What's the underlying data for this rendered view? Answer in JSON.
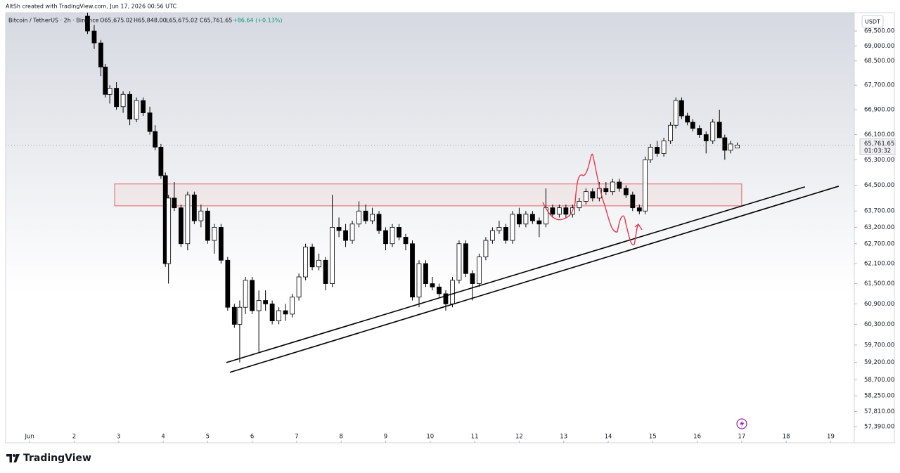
{
  "chart_data": {
    "type": "candlestick",
    "header": "AltSh created with TradingView.com, Jun 17, 2026 00:56 UTC",
    "symbol": "Bitcoin / TetherUS · 2h · Binance",
    "ohlc": [
      {
        "value": 65675.02,
        "label": "O65,675.02"
      },
      {
        "value": 65848.0,
        "label": "H65,848.00"
      },
      {
        "value": 65675.02,
        "label": "L65,675.02"
      },
      {
        "value": 65761.65,
        "label": "C65,761.65"
      }
    ],
    "change": "+86.64 (+0.13%)",
    "currency": "USDT",
    "last_price": {
      "value": 65761.65,
      "label": "65,761.65"
    },
    "countdown": "01:03:32",
    "footer_brand": "TradingView",
    "log_scale": true,
    "grid": false,
    "up_color": "#ffffff",
    "down_color": "#000000",
    "wick_color": "#000000",
    "xlim": [
      0.46,
      19.53
    ],
    "ylim": [
      56940,
      70120
    ],
    "xticks": [
      {
        "value": 1,
        "label": "Jun"
      },
      2,
      3,
      4,
      5,
      6,
      7,
      8,
      9,
      10,
      11,
      12,
      13,
      14,
      15,
      16,
      17,
      18,
      19
    ],
    "yticks": [
      {
        "value": 69500,
        "label": "69,500.00"
      },
      {
        "value": 69000,
        "label": "69,000.00"
      },
      {
        "value": 68500,
        "label": "68,500.00"
      },
      {
        "value": 67700,
        "label": "67,700.00"
      },
      {
        "value": 66900,
        "label": "66,900.00"
      },
      {
        "value": 66100,
        "label": "66,100.00"
      },
      {
        "value": 65300,
        "label": "65,300.00"
      },
      {
        "value": 64500,
        "label": "64,500.00"
      },
      {
        "value": 63700,
        "label": "63,700.00"
      },
      {
        "value": 63200,
        "label": "63,200.00"
      },
      {
        "value": 62700,
        "label": "62,700.00"
      },
      {
        "value": 62100,
        "label": "62,100.00"
      },
      {
        "value": 61500,
        "label": "61,500.00"
      },
      {
        "value": 60900,
        "label": "60,900.00"
      },
      {
        "value": 60300,
        "label": "60,300.00"
      },
      {
        "value": 59700,
        "label": "59,700.00"
      },
      {
        "value": 59200,
        "label": "59,200.00"
      },
      {
        "value": 58700,
        "label": "58,700.00"
      },
      {
        "value": 58250,
        "label": "58,250.00"
      },
      {
        "value": 57810,
        "label": "57,810.00"
      },
      {
        "value": 57390,
        "label": "57,390.00"
      }
    ],
    "zone": {
      "x": [
        2.91,
        17.0
      ],
      "y": [
        63860,
        64540
      ],
      "color": "#e06666"
    },
    "trendlines": [
      {
        "x": [
          5.42,
          18.42
        ],
        "y": [
          59195,
          64450
        ],
        "color": "#000000"
      },
      {
        "x": [
          5.5,
          19.18
        ],
        "y": [
          58915,
          64470
        ],
        "color": "#000000"
      }
    ],
    "candles": [
      [
        2.3,
        70000,
        70120,
        69400,
        69500
      ],
      [
        2.45,
        69500,
        69700,
        68900,
        69100
      ],
      [
        2.6,
        69100,
        69200,
        68000,
        68300
      ],
      [
        2.7,
        68300,
        68400,
        67300,
        67400
      ],
      [
        2.8,
        67400,
        67700,
        67100,
        67600
      ],
      [
        2.95,
        67600,
        67800,
        66900,
        67000
      ],
      [
        3.1,
        67000,
        67500,
        66800,
        67400
      ],
      [
        3.25,
        67400,
        67500,
        66400,
        66600
      ],
      [
        3.4,
        66600,
        67300,
        66500,
        67200
      ],
      [
        3.55,
        67200,
        67300,
        66700,
        66800
      ],
      [
        3.7,
        66800,
        67000,
        66100,
        66200
      ],
      [
        3.82,
        66200,
        66400,
        65600,
        65700
      ],
      [
        3.95,
        65700,
        65800,
        64700,
        64800
      ],
      [
        4.05,
        64800,
        64900,
        62000,
        62100
      ],
      [
        4.12,
        62100,
        64200,
        61500,
        64100
      ],
      [
        4.25,
        64100,
        64600,
        63700,
        63800
      ],
      [
        4.4,
        63800,
        63900,
        62600,
        62700
      ],
      [
        4.55,
        62700,
        64300,
        62500,
        64200
      ],
      [
        4.7,
        64200,
        64300,
        63300,
        63400
      ],
      [
        4.85,
        63400,
        63900,
        63200,
        63700
      ],
      [
        5.0,
        63700,
        63800,
        62700,
        62800
      ],
      [
        5.15,
        62800,
        63300,
        62400,
        63200
      ],
      [
        5.3,
        63200,
        63300,
        62100,
        62200
      ],
      [
        5.45,
        62200,
        62300,
        60700,
        60800
      ],
      [
        5.6,
        60800,
        60900,
        60200,
        60300
      ],
      [
        5.72,
        60300,
        61000,
        59200,
        60800
      ],
      [
        5.85,
        60800,
        61700,
        60600,
        61600
      ],
      [
        6.0,
        61600,
        61700,
        60600,
        60700
      ],
      [
        6.15,
        60700,
        61300,
        59500,
        61000
      ],
      [
        6.3,
        61000,
        61300,
        60700,
        60900
      ],
      [
        6.45,
        60900,
        61000,
        60300,
        60400
      ],
      [
        6.6,
        60400,
        60800,
        60300,
        60700
      ],
      [
        6.75,
        60700,
        60900,
        60400,
        60600
      ],
      [
        6.9,
        60600,
        61200,
        60500,
        61100
      ],
      [
        7.05,
        61100,
        61800,
        61000,
        61700
      ],
      [
        7.2,
        61700,
        62700,
        61600,
        62600
      ],
      [
        7.35,
        62600,
        62700,
        61900,
        62000
      ],
      [
        7.5,
        62000,
        62400,
        61900,
        62200
      ],
      [
        7.65,
        62200,
        62300,
        61300,
        61500
      ],
      [
        7.8,
        61500,
        64200,
        61400,
        63200
      ],
      [
        7.95,
        63200,
        63500,
        62900,
        63100
      ],
      [
        8.1,
        63100,
        63300,
        62600,
        62800
      ],
      [
        8.25,
        62800,
        63400,
        62700,
        63300
      ],
      [
        8.4,
        63300,
        64000,
        63200,
        63700
      ],
      [
        8.55,
        63700,
        63900,
        63300,
        63400
      ],
      [
        8.7,
        63400,
        63800,
        63300,
        63600
      ],
      [
        8.85,
        63600,
        63700,
        63000,
        63100
      ],
      [
        9.0,
        63100,
        63200,
        62500,
        62700
      ],
      [
        9.15,
        62700,
        63300,
        62600,
        63200
      ],
      [
        9.3,
        63200,
        63300,
        62800,
        62900
      ],
      [
        9.45,
        62900,
        63000,
        62500,
        62700
      ],
      [
        9.6,
        62700,
        62800,
        61000,
        61100
      ],
      [
        9.75,
        61100,
        62200,
        60800,
        62100
      ],
      [
        9.9,
        62100,
        62200,
        61400,
        61500
      ],
      [
        10.05,
        61500,
        61700,
        61300,
        61400
      ],
      [
        10.2,
        61400,
        61500,
        61100,
        61200
      ],
      [
        10.35,
        61200,
        61300,
        60700,
        60900
      ],
      [
        10.5,
        60900,
        61700,
        60800,
        61600
      ],
      [
        10.65,
        61600,
        62800,
        61500,
        62700
      ],
      [
        10.8,
        62700,
        62800,
        61700,
        61800
      ],
      [
        10.95,
        61800,
        61900,
        61000,
        61500
      ],
      [
        11.1,
        61500,
        62400,
        61400,
        62300
      ],
      [
        11.25,
        62300,
        62900,
        62200,
        62800
      ],
      [
        11.4,
        62800,
        63200,
        62700,
        63100
      ],
      [
        11.55,
        63100,
        63400,
        63000,
        63200
      ],
      [
        11.7,
        63200,
        63300,
        62700,
        62800
      ],
      [
        11.85,
        62800,
        63700,
        62700,
        63600
      ],
      [
        12.0,
        63600,
        63800,
        63200,
        63300
      ],
      [
        12.15,
        63300,
        63700,
        63200,
        63600
      ],
      [
        12.3,
        63600,
        63700,
        63300,
        63400
      ],
      [
        12.45,
        63400,
        63500,
        62900,
        63300
      ],
      [
        12.6,
        63300,
        64400,
        63200,
        63800
      ],
      [
        12.75,
        63800,
        63900,
        63500,
        63600
      ],
      [
        12.9,
        63600,
        63900,
        63500,
        63800
      ],
      [
        13.05,
        63800,
        63900,
        63500,
        63600
      ],
      [
        13.2,
        63600,
        63900,
        63500,
        63800
      ],
      [
        13.35,
        63800,
        64100,
        63700,
        64000
      ],
      [
        13.5,
        64000,
        64400,
        63900,
        64300
      ],
      [
        13.65,
        64300,
        64400,
        64000,
        64100
      ],
      [
        13.8,
        64100,
        64600,
        64000,
        64400
      ],
      [
        13.95,
        64400,
        64600,
        64200,
        64300
      ],
      [
        14.1,
        64300,
        64700,
        64200,
        64600
      ],
      [
        14.25,
        64600,
        64700,
        64300,
        64400
      ],
      [
        14.4,
        64400,
        64500,
        64100,
        64200
      ],
      [
        14.55,
        64200,
        64300,
        63700,
        63800
      ],
      [
        14.7,
        63800,
        63900,
        63600,
        63700
      ],
      [
        14.83,
        63700,
        65400,
        63600,
        65300
      ],
      [
        14.95,
        65300,
        65800,
        65200,
        65700
      ],
      [
        15.1,
        65700,
        65900,
        65400,
        65500
      ],
      [
        15.25,
        65500,
        66000,
        65400,
        65900
      ],
      [
        15.4,
        65900,
        66500,
        65800,
        66400
      ],
      [
        15.52,
        66400,
        67300,
        66300,
        67200
      ],
      [
        15.65,
        67200,
        67300,
        66600,
        66700
      ],
      [
        15.78,
        66700,
        66800,
        66400,
        66500
      ],
      [
        15.9,
        66500,
        66600,
        66200,
        66300
      ],
      [
        16.05,
        66300,
        66400,
        66000,
        66100
      ],
      [
        16.2,
        66100,
        66200,
        65500,
        65900
      ],
      [
        16.35,
        65900,
        66600,
        65800,
        66500
      ],
      [
        16.5,
        66500,
        66900,
        66000,
        66000
      ],
      [
        16.62,
        66000,
        66100,
        65300,
        65600
      ],
      [
        16.75,
        65600,
        65900,
        65500,
        65800
      ],
      [
        16.9,
        65675.02,
        65848,
        65675.02,
        65761.65
      ]
    ]
  }
}
